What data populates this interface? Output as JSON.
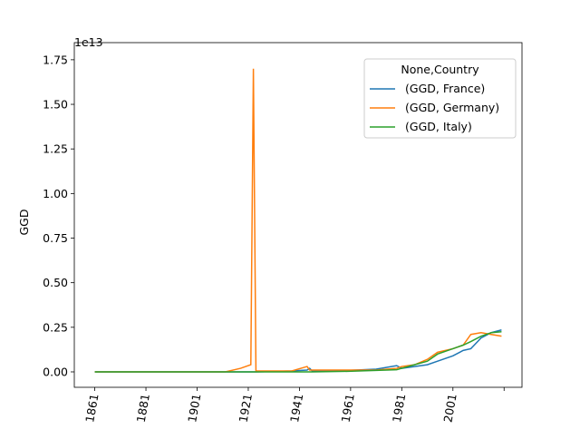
{
  "chart_data": {
    "type": "line",
    "ylabel": "GGD",
    "yoffset_label": "1e13",
    "x": [
      1861,
      1912,
      1918,
      1922,
      1923,
      1924,
      1938,
      1944,
      1945,
      1946,
      1960,
      1971,
      1979,
      1981,
      1986,
      1991,
      1995,
      2001,
      2005,
      2008,
      2012,
      2016,
      2020
    ],
    "series": [
      {
        "name": "(GGD, France)",
        "color": "#1f77b4",
        "values": [
          0,
          0,
          0,
          0,
          0,
          0,
          0.005,
          0.01,
          0.02,
          0.005,
          0.008,
          0.015,
          0.035,
          0.02,
          0.03,
          0.04,
          0.06,
          0.09,
          0.12,
          0.13,
          0.19,
          0.22,
          0.235
        ]
      },
      {
        "name": "(GGD, Germany)",
        "color": "#ff7f0e",
        "values": [
          0,
          0,
          0.02,
          0.04,
          1.7,
          0.005,
          0.005,
          0.03,
          0.01,
          0.01,
          0.01,
          0.01,
          0.02,
          0.03,
          0.04,
          0.07,
          0.11,
          0.13,
          0.15,
          0.21,
          0.22,
          0.21,
          0.2
        ]
      },
      {
        "name": "(GGD, Italy)",
        "color": "#2ca02c",
        "values": [
          0,
          0,
          0,
          0,
          0,
          0,
          0,
          0,
          0,
          0,
          0.003,
          0.008,
          0.012,
          0.02,
          0.04,
          0.06,
          0.1,
          0.13,
          0.15,
          0.17,
          0.2,
          0.22,
          0.225
        ]
      }
    ],
    "legend_title": "None,Country",
    "legend": "upper right",
    "xlim": [
      1853,
      2028
    ],
    "ylim": [
      -0.0865,
      1.846
    ],
    "xticks": [
      1861,
      1881,
      1901,
      1921,
      1941,
      1961,
      1981,
      2001
    ],
    "xticks_unlabeled": [
      2021
    ],
    "yticks": [
      {
        "value": 0,
        "label": "0.00"
      },
      {
        "value": 0.25,
        "label": "0.25"
      },
      {
        "value": 0.5,
        "label": "0.50"
      },
      {
        "value": 0.75,
        "label": "0.75"
      },
      {
        "value": 1.0,
        "label": "1.00"
      },
      {
        "value": 1.25,
        "label": "1.25"
      },
      {
        "value": 1.5,
        "label": "1.50"
      },
      {
        "value": 1.75,
        "label": "1.75"
      }
    ]
  }
}
